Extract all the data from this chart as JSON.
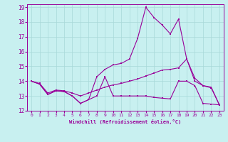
{
  "xlabel": "Windchill (Refroidissement éolien,°C)",
  "background_color": "#c8f0f0",
  "grid_color": "#a8d8d8",
  "line_color": "#990099",
  "xlim": [
    -0.5,
    23.5
  ],
  "ylim": [
    12,
    19.2
  ],
  "xticks": [
    0,
    1,
    2,
    3,
    4,
    5,
    6,
    7,
    8,
    9,
    10,
    11,
    12,
    13,
    14,
    15,
    16,
    17,
    18,
    19,
    20,
    21,
    22,
    23
  ],
  "yticks": [
    12,
    13,
    14,
    15,
    16,
    17,
    18,
    19
  ],
  "line1_x": [
    0,
    1,
    2,
    3,
    4,
    5,
    6,
    7,
    8,
    9,
    10,
    11,
    12,
    13,
    14,
    15,
    16,
    17,
    18,
    19,
    20,
    21,
    22,
    23
  ],
  "line1_y": [
    14.0,
    13.8,
    13.1,
    13.35,
    13.3,
    13.0,
    12.5,
    12.75,
    13.0,
    14.3,
    13.0,
    13.0,
    13.0,
    13.0,
    13.0,
    12.9,
    12.85,
    12.8,
    14.0,
    14.0,
    13.7,
    12.5,
    12.45,
    12.4
  ],
  "line2_x": [
    0,
    1,
    2,
    3,
    4,
    5,
    6,
    7,
    8,
    9,
    10,
    11,
    12,
    13,
    14,
    15,
    16,
    17,
    18,
    19,
    20,
    21,
    22,
    23
  ],
  "line2_y": [
    14.0,
    13.8,
    13.1,
    13.35,
    13.3,
    13.0,
    12.5,
    12.75,
    14.3,
    14.8,
    15.1,
    15.2,
    15.5,
    16.9,
    19.0,
    18.3,
    17.8,
    17.2,
    18.2,
    15.5,
    14.2,
    13.7,
    13.6,
    12.4
  ],
  "line3_x": [
    0,
    1,
    2,
    3,
    4,
    5,
    6,
    7,
    8,
    9,
    10,
    11,
    12,
    13,
    14,
    15,
    16,
    17,
    18,
    19,
    20,
    21,
    22,
    23
  ],
  "line3_y": [
    14.0,
    13.85,
    13.2,
    13.4,
    13.35,
    13.2,
    13.0,
    13.2,
    13.4,
    13.6,
    13.75,
    13.85,
    14.0,
    14.15,
    14.35,
    14.55,
    14.75,
    14.8,
    14.9,
    15.5,
    14.0,
    13.7,
    13.55,
    12.4
  ]
}
